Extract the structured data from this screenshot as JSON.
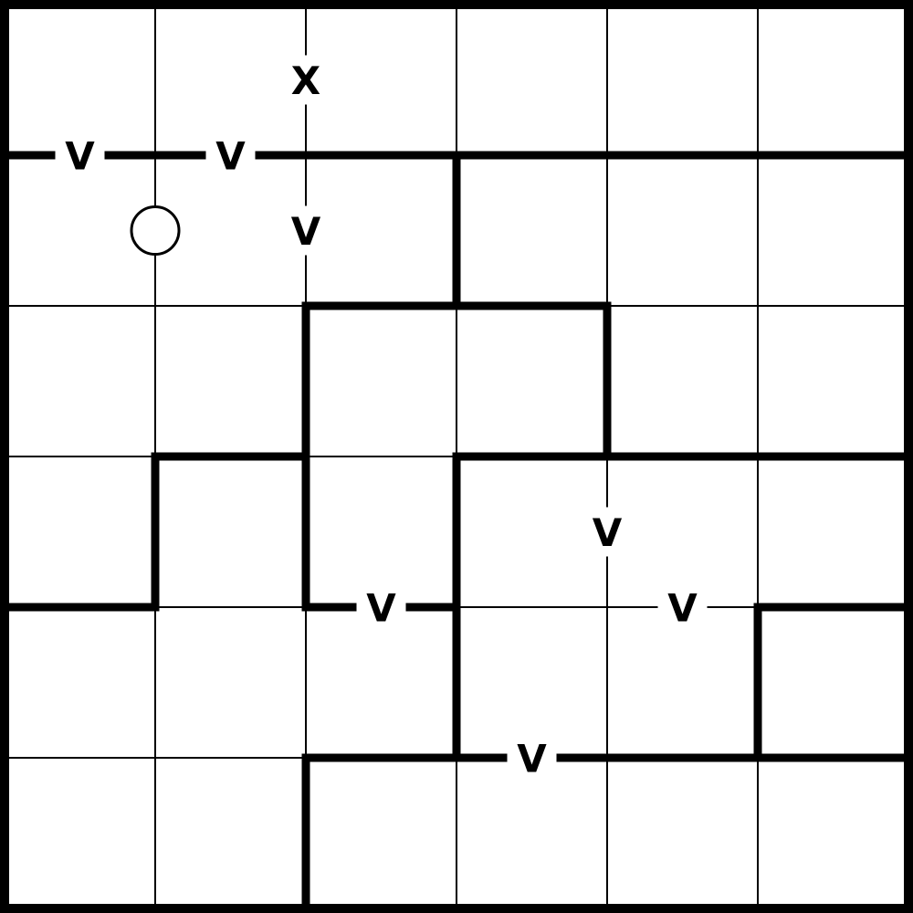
{
  "puzzle": {
    "rows": 6,
    "cols": 6,
    "colors": {
      "background": "#ffffff",
      "line": "#000000"
    },
    "regions": [
      [
        0,
        0,
        0,
        0,
        0,
        0
      ],
      [
        1,
        1,
        1,
        2,
        2,
        2
      ],
      [
        1,
        1,
        3,
        3,
        2,
        2
      ],
      [
        1,
        4,
        3,
        5,
        5,
        5
      ],
      [
        4,
        4,
        4,
        5,
        5,
        6
      ],
      [
        4,
        4,
        7,
        7,
        7,
        7
      ]
    ],
    "edge_clues": [
      {
        "label": "X",
        "between": [
          [
            0,
            1
          ],
          [
            0,
            2
          ]
        ]
      },
      {
        "label": "V",
        "between": [
          [
            0,
            0
          ],
          [
            1,
            0
          ]
        ]
      },
      {
        "label": "V",
        "between": [
          [
            0,
            1
          ],
          [
            1,
            1
          ]
        ]
      },
      {
        "label": "V",
        "between": [
          [
            1,
            1
          ],
          [
            1,
            2
          ]
        ]
      },
      {
        "label": "V",
        "between": [
          [
            3,
            3
          ],
          [
            3,
            4
          ]
        ]
      },
      {
        "label": "V",
        "between": [
          [
            3,
            2
          ],
          [
            4,
            2
          ]
        ]
      },
      {
        "label": "V",
        "between": [
          [
            3,
            4
          ],
          [
            4,
            4
          ]
        ]
      },
      {
        "label": "V",
        "between": [
          [
            4,
            3
          ],
          [
            5,
            3
          ]
        ]
      }
    ],
    "circle_clues": [
      {
        "icon": "circle-icon",
        "corner": [
          1,
          1
        ]
      }
    ]
  }
}
